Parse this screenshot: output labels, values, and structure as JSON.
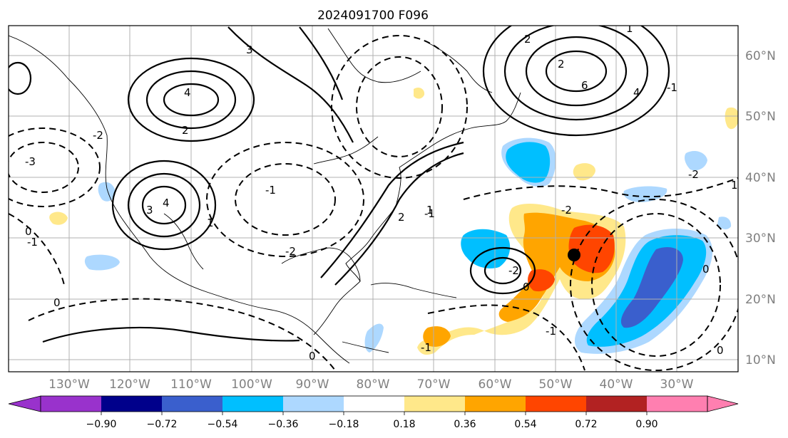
{
  "title": "2024091700 F096",
  "lat_labels": [
    "60°N",
    "50°N",
    "40°N",
    "30°N",
    "20°N",
    "10°N"
  ],
  "lon_labels": [
    "130°W",
    "120°W",
    "110°W",
    "100°W",
    "90°W",
    "80°W",
    "70°W",
    "60°W",
    "50°W",
    "40°W",
    "30°W"
  ],
  "colorbar": {
    "ticks": [
      "−0.90",
      "−0.72",
      "−0.54",
      "−0.36",
      "−0.18",
      "0.18",
      "0.36",
      "0.54",
      "0.72",
      "0.90"
    ],
    "colors": [
      "#9932cc",
      "#00008b",
      "#3a5fcd",
      "#00bfff",
      "#add8ff",
      "#ffffff",
      "#ffe88a",
      "#ffa500",
      "#ff4500",
      "#b22222",
      "#ff7fb0"
    ]
  },
  "contour_labels": {
    "positive": [
      "3",
      "4",
      "2",
      "1",
      "4",
      "3",
      "2",
      "1",
      "6",
      "4",
      "2",
      "1",
      "1",
      "2"
    ],
    "negative": [
      "-1",
      "-2",
      "-3",
      "-2",
      "-1",
      "0",
      "0",
      "0",
      "-2",
      "-1",
      "0",
      "0",
      "-1",
      "-2",
      "-1",
      "0",
      "-1",
      "-2"
    ]
  },
  "marker": "storm-center"
}
